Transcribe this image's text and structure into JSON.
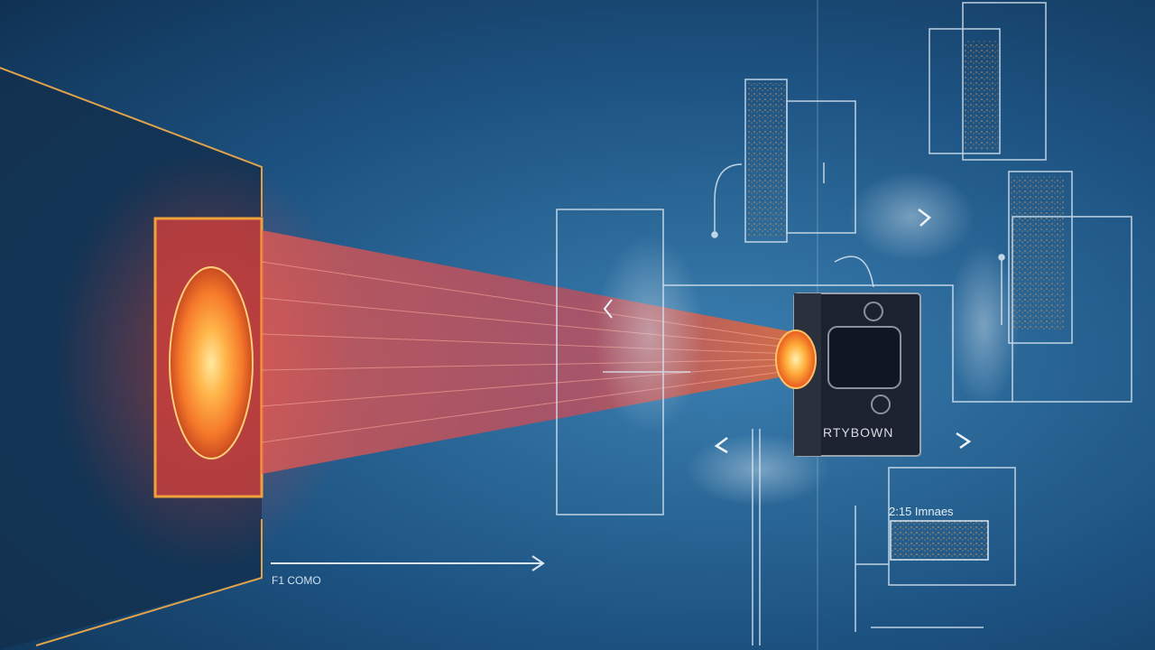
{
  "labels": {
    "device": "RTYBOWN",
    "distance": "F1 COMO",
    "panel_caption": "2:15 Imnaes"
  },
  "colors": {
    "background": "#1d5382",
    "beam": "#ff4a3d",
    "glow": "#ffb347",
    "frame_orange": "#f0a03c",
    "line_white": "#dbe8f3"
  },
  "icons": [
    "laser-emitter-icon",
    "target-lens-icon",
    "arrow-right-icon",
    "chevron-icon"
  ]
}
